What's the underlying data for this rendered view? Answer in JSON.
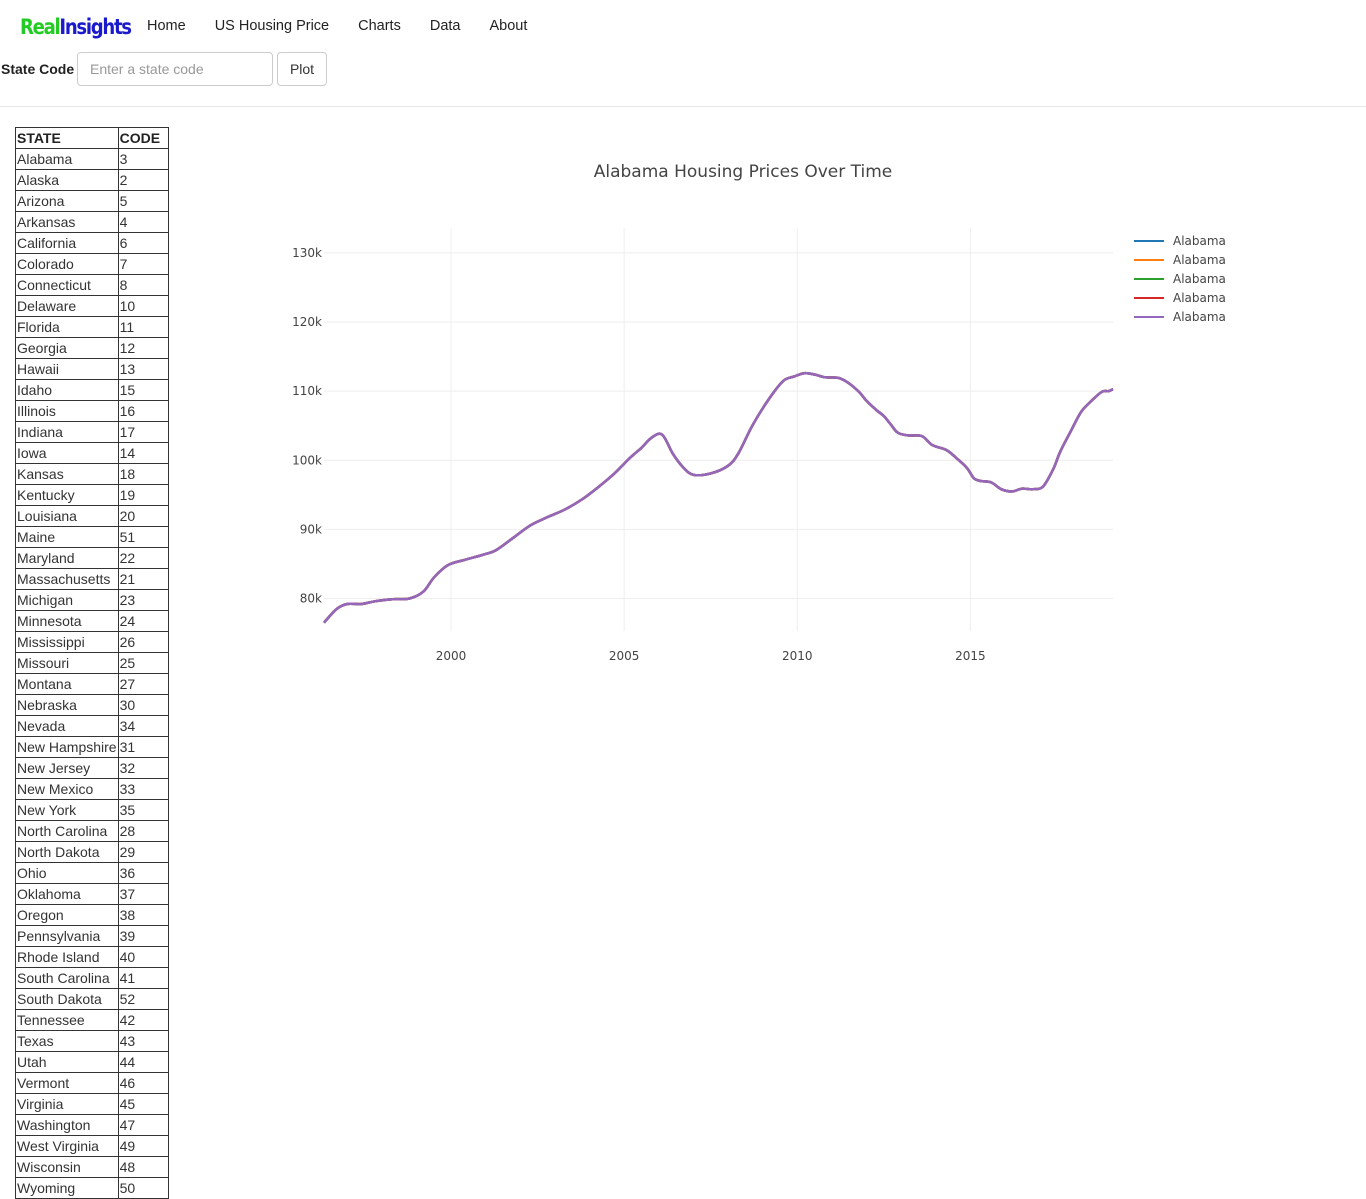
{
  "brand": {
    "part1": "Real",
    "part2": "Insights"
  },
  "nav": [
    "Home",
    "US Housing Price",
    "Charts",
    "Data",
    "About"
  ],
  "search": {
    "label": "State Code",
    "placeholder": "Enter a state code",
    "button": "Plot"
  },
  "table": {
    "headers": [
      "STATE",
      "CODE"
    ],
    "rows": [
      [
        "Alabama",
        "3"
      ],
      [
        "Alaska",
        "2"
      ],
      [
        "Arizona",
        "5"
      ],
      [
        "Arkansas",
        "4"
      ],
      [
        "California",
        "6"
      ],
      [
        "Colorado",
        "7"
      ],
      [
        "Connecticut",
        "8"
      ],
      [
        "Delaware",
        "10"
      ],
      [
        "Florida",
        "11"
      ],
      [
        "Georgia",
        "12"
      ],
      [
        "Hawaii",
        "13"
      ],
      [
        "Idaho",
        "15"
      ],
      [
        "Illinois",
        "16"
      ],
      [
        "Indiana",
        "17"
      ],
      [
        "Iowa",
        "14"
      ],
      [
        "Kansas",
        "18"
      ],
      [
        "Kentucky",
        "19"
      ],
      [
        "Louisiana",
        "20"
      ],
      [
        "Maine",
        "51"
      ],
      [
        "Maryland",
        "22"
      ],
      [
        "Massachusetts",
        "21"
      ],
      [
        "Michigan",
        "23"
      ],
      [
        "Minnesota",
        "24"
      ],
      [
        "Mississippi",
        "26"
      ],
      [
        "Missouri",
        "25"
      ],
      [
        "Montana",
        "27"
      ],
      [
        "Nebraska",
        "30"
      ],
      [
        "Nevada",
        "34"
      ],
      [
        "New Hampshire",
        "31"
      ],
      [
        "New Jersey",
        "32"
      ],
      [
        "New Mexico",
        "33"
      ],
      [
        "New York",
        "35"
      ],
      [
        "North Carolina",
        "28"
      ],
      [
        "North Dakota",
        "29"
      ],
      [
        "Ohio",
        "36"
      ],
      [
        "Oklahoma",
        "37"
      ],
      [
        "Oregon",
        "38"
      ],
      [
        "Pennsylvania",
        "39"
      ],
      [
        "Rhode Island",
        "40"
      ],
      [
        "South Carolina",
        "41"
      ],
      [
        "South Dakota",
        "52"
      ],
      [
        "Tennessee",
        "42"
      ],
      [
        "Texas",
        "43"
      ],
      [
        "Utah",
        "44"
      ],
      [
        "Vermont",
        "46"
      ],
      [
        "Virginia",
        "45"
      ],
      [
        "Washington",
        "47"
      ],
      [
        "West Virginia",
        "49"
      ],
      [
        "Wisconsin",
        "48"
      ],
      [
        "Wyoming",
        "50"
      ]
    ]
  },
  "chart_data": {
    "type": "line",
    "title": "Alabama Housing Prices Over Time",
    "xlabel": "",
    "ylabel": "",
    "xlim": [
      1996.33,
      2019.12
    ],
    "ylim": [
      75300,
      133600
    ],
    "xticks": [
      2000,
      2005,
      2010,
      2015
    ],
    "xtick_labels": [
      "2000",
      "2005",
      "2010",
      "2015"
    ],
    "yticks": [
      80000,
      90000,
      100000,
      110000,
      120000,
      130000
    ],
    "ytick_labels": [
      "80k",
      "90k",
      "100k",
      "110k",
      "120k",
      "130k"
    ],
    "grid": true,
    "legend_position": "top-right",
    "series": [
      {
        "name": "Alabama",
        "color": "#1f77b4"
      },
      {
        "name": "Alabama",
        "color": "#ff7f0e"
      },
      {
        "name": "Alabama",
        "color": "#2ca02c"
      },
      {
        "name": "Alabama",
        "color": "#d62728"
      },
      {
        "name": "Alabama",
        "color": "#9467bd"
      }
    ],
    "x": [
      1996.33,
      1996.7,
      1997.0,
      1997.4,
      1997.8,
      1998.3,
      1998.8,
      1999.2,
      1999.5,
      1999.9,
      2000.4,
      2000.9,
      2001.3,
      2001.8,
      2002.3,
      2002.8,
      2003.3,
      2003.8,
      2004.3,
      2004.7,
      2005.0,
      2005.2,
      2005.5,
      2005.8,
      2006.1,
      2006.4,
      2006.7,
      2007.0,
      2007.5,
      2008.0,
      2008.3,
      2008.7,
      2009.2,
      2009.6,
      2009.9,
      2010.2,
      2010.5,
      2010.8,
      2011.2,
      2011.5,
      2011.8,
      2012.0,
      2012.3,
      2012.5,
      2012.7,
      2012.9,
      2013.2,
      2013.6,
      2013.9,
      2014.3,
      2014.6,
      2014.9,
      2015.1,
      2015.3,
      2015.6,
      2015.9,
      2016.2,
      2016.5,
      2016.8,
      2017.1,
      2017.4,
      2017.6,
      2017.9,
      2018.2,
      2018.5,
      2018.8,
      2019.0,
      2019.12
    ],
    "y": [
      76500,
      78500,
      79200,
      79200,
      79600,
      79900,
      80000,
      81000,
      83000,
      84800,
      85600,
      86300,
      87000,
      88800,
      90600,
      91800,
      92900,
      94400,
      96300,
      98000,
      99500,
      100500,
      101800,
      103300,
      103700,
      101000,
      99000,
      97900,
      98100,
      99200,
      101000,
      105000,
      109000,
      111500,
      112100,
      112600,
      112400,
      112000,
      111900,
      111100,
      109800,
      108600,
      107200,
      106400,
      105200,
      104000,
      103600,
      103500,
      102200,
      101500,
      100300,
      98900,
      97400,
      97000,
      96800,
      95800,
      95500,
      95900,
      95800,
      96200,
      98800,
      101300,
      104200,
      107000,
      108600,
      109900,
      110000,
      110300
    ]
  }
}
